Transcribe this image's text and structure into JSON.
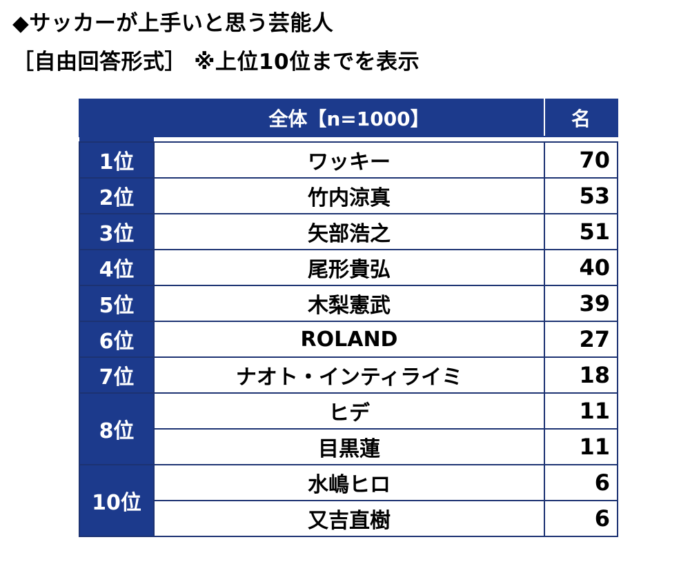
{
  "title": {
    "line1": "◆サッカーが上手いと思う芸能人",
    "line2": "［自由回答形式］ ※上位10位までを表示"
  },
  "colors": {
    "header_bg": "#1c3a8c",
    "border": "#1c3272",
    "text": "#000000"
  },
  "chart_data": {
    "type": "table",
    "columns": [
      "全体【n=1000】",
      "名"
    ],
    "rows": [
      {
        "rank": "1位",
        "name": "ワッキー",
        "count": 70
      },
      {
        "rank": "2位",
        "name": "竹内涼真",
        "count": 53
      },
      {
        "rank": "3位",
        "name": "矢部浩之",
        "count": 51
      },
      {
        "rank": "4位",
        "name": "尾形貴弘",
        "count": 40
      },
      {
        "rank": "5位",
        "name": "木梨憲武",
        "count": 39
      },
      {
        "rank": "6位",
        "name": "ROLAND",
        "count": 27
      },
      {
        "rank": "7位",
        "name": "ナオト・インティライミ",
        "count": 18
      },
      {
        "rank": "8位",
        "name": "ヒデ",
        "count": 11
      },
      {
        "rank": "8位",
        "name": "目黒蓮",
        "count": 11
      },
      {
        "rank": "10位",
        "name": "水嶋ヒロ",
        "count": 6
      },
      {
        "rank": "10位",
        "name": "又吉直樹",
        "count": 6
      }
    ]
  }
}
